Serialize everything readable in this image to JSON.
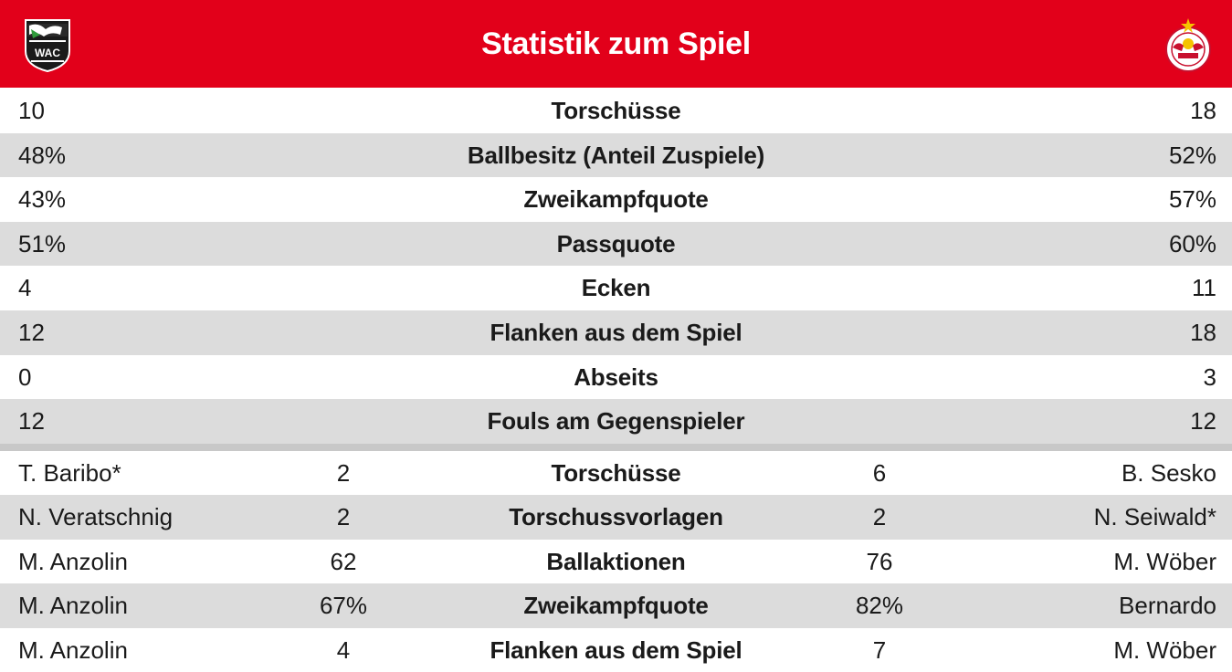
{
  "header": {
    "title": "Statistik zum Spiel",
    "home_logo_icon": "wac-crest-icon",
    "away_logo_icon": "redbull-salzburg-crest-icon",
    "home_logo_text": "WAC",
    "accent_color": "#e2001a"
  },
  "team_stats": [
    {
      "label": "Torschüsse",
      "home": "10",
      "away": "18"
    },
    {
      "label": "Ballbesitz (Anteil Zuspiele)",
      "home": "48%",
      "away": "52%"
    },
    {
      "label": "Zweikampfquote",
      "home": "43%",
      "away": "57%"
    },
    {
      "label": "Passquote",
      "home": "51%",
      "away": "60%"
    },
    {
      "label": "Ecken",
      "home": "4",
      "away": "11"
    },
    {
      "label": "Flanken aus dem Spiel",
      "home": "12",
      "away": "18"
    },
    {
      "label": "Abseits",
      "home": "0",
      "away": "3"
    },
    {
      "label": "Fouls am Gegenspieler",
      "home": "12",
      "away": "12"
    }
  ],
  "player_stats": [
    {
      "label": "Torschüsse",
      "home_player": "T. Baribo*",
      "home_value": "2",
      "away_value": "6",
      "away_player": "B. Sesko"
    },
    {
      "label": "Torschussvorlagen",
      "home_player": "N. Veratschnig",
      "home_value": "2",
      "away_value": "2",
      "away_player": "N. Seiwald*"
    },
    {
      "label": "Ballaktionen",
      "home_player": "M. Anzolin",
      "home_value": "62",
      "away_value": "76",
      "away_player": "M. Wöber"
    },
    {
      "label": "Zweikampfquote",
      "home_player": "M. Anzolin",
      "home_value": "67%",
      "away_value": "82%",
      "away_player": "Bernardo"
    },
    {
      "label": "Flanken aus dem Spiel",
      "home_player": "M. Anzolin",
      "home_value": "4",
      "away_value": "7",
      "away_player": "M. Wöber"
    }
  ]
}
